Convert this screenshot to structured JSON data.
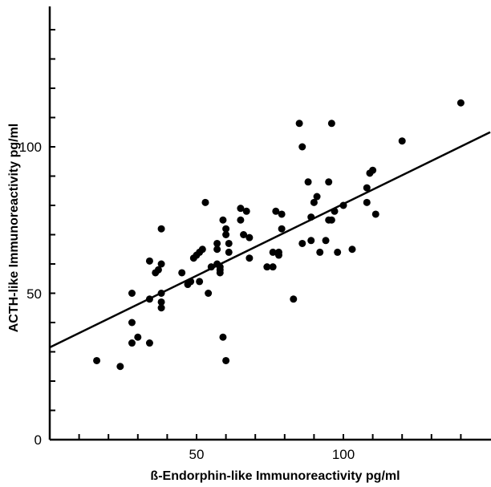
{
  "chart_data": {
    "type": "scatter",
    "title": "",
    "xlabel": "ß-Endorphin-like Immunoreactivity pg/ml",
    "ylabel": "ACTH-like Immunoreactivity pg/ml",
    "xlim": [
      0,
      150
    ],
    "ylim": [
      0,
      150
    ],
    "x_tick_labels": [
      "50",
      "100"
    ],
    "y_tick_labels": [
      "0",
      "50",
      "100"
    ],
    "x_ticks_minor": [
      10,
      20,
      30,
      40,
      50,
      60,
      70,
      80,
      90,
      100,
      110,
      120,
      130,
      140
    ],
    "y_ticks_minor": [
      10,
      20,
      30,
      40,
      50,
      60,
      70,
      80,
      90,
      100,
      110,
      120,
      130,
      140
    ],
    "grid": false,
    "legend": "none",
    "points": [
      [
        16,
        27
      ],
      [
        24,
        25
      ],
      [
        28,
        50
      ],
      [
        28,
        40
      ],
      [
        28,
        33
      ],
      [
        30,
        35
      ],
      [
        34,
        61
      ],
      [
        34,
        48
      ],
      [
        34,
        33
      ],
      [
        36,
        57
      ],
      [
        37,
        58
      ],
      [
        38,
        60
      ],
      [
        38,
        50
      ],
      [
        38,
        47
      ],
      [
        38,
        45
      ],
      [
        38,
        72
      ],
      [
        45,
        57
      ],
      [
        47,
        53
      ],
      [
        48,
        54
      ],
      [
        49,
        62
      ],
      [
        50,
        63
      ],
      [
        51,
        64
      ],
      [
        51,
        54
      ],
      [
        52,
        65
      ],
      [
        53,
        81
      ],
      [
        54,
        50
      ],
      [
        55,
        59
      ],
      [
        57,
        65
      ],
      [
        57,
        67
      ],
      [
        57,
        60
      ],
      [
        58,
        58
      ],
      [
        58,
        59
      ],
      [
        58,
        57
      ],
      [
        59,
        75
      ],
      [
        59,
        35
      ],
      [
        60,
        72
      ],
      [
        60,
        70
      ],
      [
        60,
        27
      ],
      [
        61,
        67
      ],
      [
        61,
        64
      ],
      [
        65,
        79
      ],
      [
        65,
        75
      ],
      [
        66,
        70
      ],
      [
        67,
        78
      ],
      [
        68,
        62
      ],
      [
        68,
        69
      ],
      [
        74,
        59
      ],
      [
        76,
        64
      ],
      [
        76,
        59
      ],
      [
        77,
        78
      ],
      [
        78,
        63
      ],
      [
        78,
        64
      ],
      [
        79,
        77
      ],
      [
        79,
        72
      ],
      [
        83,
        48
      ],
      [
        85,
        108
      ],
      [
        86,
        100
      ],
      [
        86,
        67
      ],
      [
        88,
        88
      ],
      [
        89,
        68
      ],
      [
        89,
        76
      ],
      [
        90,
        81
      ],
      [
        91,
        83
      ],
      [
        92,
        64
      ],
      [
        94,
        68
      ],
      [
        95,
        75
      ],
      [
        95,
        88
      ],
      [
        96,
        108
      ],
      [
        96,
        75
      ],
      [
        97,
        78
      ],
      [
        98,
        64
      ],
      [
        100,
        80
      ],
      [
        103,
        65
      ],
      [
        108,
        86
      ],
      [
        108,
        81
      ],
      [
        109,
        91
      ],
      [
        110,
        92
      ],
      [
        111,
        77
      ],
      [
        120,
        102
      ],
      [
        140,
        115
      ]
    ],
    "fit_line": {
      "slope": 0.49,
      "intercept": 31.5
    }
  }
}
